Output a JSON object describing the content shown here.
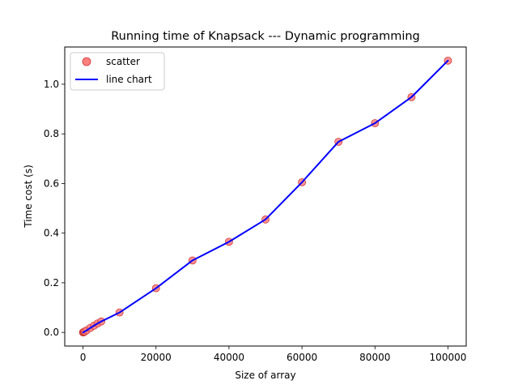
{
  "chart_data": {
    "type": "scatter",
    "title": "Running time of Knapsack --- Dynamic programming",
    "xlabel": "Size of array",
    "ylabel": "Time cost (s)",
    "xlim": [
      -5000,
      105000
    ],
    "ylim": [
      -0.055,
      1.15
    ],
    "xticks": [
      0,
      20000,
      40000,
      60000,
      80000,
      100000
    ],
    "xtick_labels": [
      "0",
      "20000",
      "40000",
      "60000",
      "80000",
      "100000"
    ],
    "yticks": [
      0.0,
      0.2,
      0.4,
      0.6,
      0.8,
      1.0
    ],
    "ytick_labels": [
      "0.0",
      "0.2",
      "0.4",
      "0.6",
      "0.8",
      "1.0"
    ],
    "grid": false,
    "legend_position": "upper-left",
    "x": [
      10,
      50,
      100,
      200,
      300,
      400,
      500,
      1000,
      2000,
      3000,
      4000,
      5000,
      10000,
      20000,
      30000,
      40000,
      50000,
      60000,
      70000,
      80000,
      90000,
      100000
    ],
    "series": [
      {
        "name": "scatter",
        "kind": "scatter",
        "color": "#ff7f7f",
        "edge_color": "#cc3a3a",
        "values": [
          0.0,
          0.0,
          0.0,
          0.001,
          0.002,
          0.003,
          0.004,
          0.008,
          0.018,
          0.027,
          0.036,
          0.044,
          0.08,
          0.178,
          0.29,
          0.365,
          0.455,
          0.605,
          0.768,
          0.843,
          0.948,
          1.095
        ]
      },
      {
        "name": "line chart",
        "kind": "line",
        "color": "#0000ff",
        "values": [
          0.0,
          0.0,
          0.0,
          0.001,
          0.002,
          0.003,
          0.004,
          0.008,
          0.018,
          0.027,
          0.036,
          0.044,
          0.08,
          0.178,
          0.29,
          0.365,
          0.455,
          0.605,
          0.768,
          0.843,
          0.948,
          1.095
        ]
      }
    ]
  }
}
